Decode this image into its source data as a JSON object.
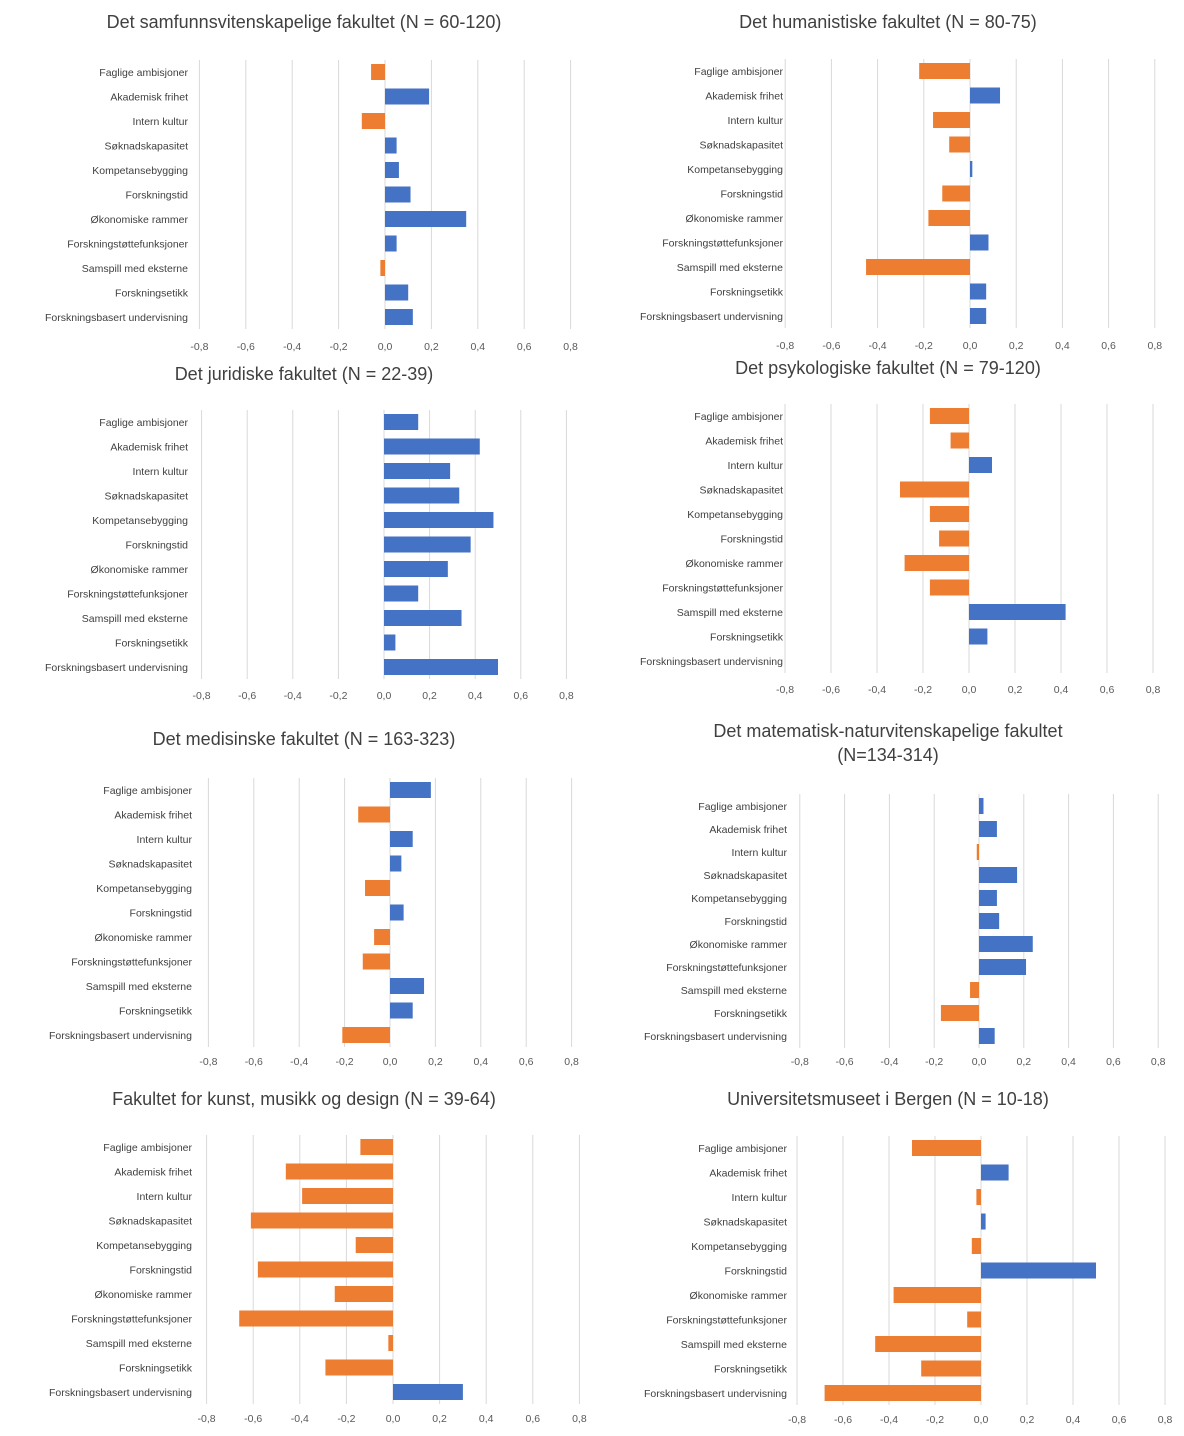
{
  "colors": {
    "positive": "#4472c4",
    "negative": "#ed7d31",
    "grid": "#d9d9d9",
    "text": "#404040"
  },
  "xlim": [
    -0.8,
    0.8
  ],
  "tick_labels": [
    "-0,8",
    "-0,6",
    "-0,4",
    "-0,2",
    "0,0",
    "0,2",
    "0,4",
    "0,6",
    "0,8"
  ],
  "categories": [
    "Faglige ambisjoner",
    "Akademisk frihet",
    "Intern kultur",
    "Søknadskapasitet",
    "Kompetansebygging",
    "Forskningstid",
    "Økonomiske rammer",
    "Forskningstøttefunksjoner",
    "Samspill med eksterne",
    "Forskningsetikk",
    "Forskningsbasert undervisning"
  ],
  "chart_data": [
    {
      "type": "bar",
      "orientation": "horizontal",
      "title": [
        "Det samfunnsvitenskapelige fakultet (N = 60-120)"
      ],
      "categories": [
        "Faglige ambisjoner",
        "Akademisk frihet",
        "Intern kultur",
        "Søknadskapasitet",
        "Kompetansebygging",
        "Forskningstid",
        "Økonomiske rammer",
        "Forskningstøttefunksjoner",
        "Samspill med eksterne",
        "Forskningsetikk",
        "Forskningsbasert undervisning"
      ],
      "values": [
        -0.06,
        0.19,
        -0.1,
        0.05,
        0.06,
        0.11,
        0.35,
        0.05,
        -0.02,
        0.1,
        0.12
      ],
      "xlim": [
        -0.8,
        0.8
      ]
    },
    {
      "type": "bar",
      "orientation": "horizontal",
      "title": [
        "Det humanistiske fakultet (N = 80-75)"
      ],
      "categories": [
        "Faglige ambisjoner",
        "Akademisk frihet",
        "Intern kultur",
        "Søknadskapasitet",
        "Kompetansebygging",
        "Forskningstid",
        "Økonomiske rammer",
        "Forskningstøttefunksjoner",
        "Samspill med eksterne",
        "Forskningsetikk",
        "Forskningsbasert undervisning"
      ],
      "values": [
        -0.22,
        0.13,
        -0.16,
        -0.09,
        0.01,
        -0.12,
        -0.18,
        0.08,
        -0.45,
        0.07,
        0.07
      ],
      "xlim": [
        -0.8,
        0.8
      ]
    },
    {
      "type": "bar",
      "orientation": "horizontal",
      "title": [
        "Det juridiske fakultet (N = 22-39)"
      ],
      "categories": [
        "Faglige ambisjoner",
        "Akademisk frihet",
        "Intern kultur",
        "Søknadskapasitet",
        "Kompetansebygging",
        "Forskningstid",
        "Økonomiske rammer",
        "Forskningstøttefunksjoner",
        "Samspill med eksterne",
        "Forskningsetikk",
        "Forskningsbasert undervisning"
      ],
      "values": [
        0.15,
        0.42,
        0.29,
        0.33,
        0.48,
        0.38,
        0.28,
        0.15,
        0.34,
        0.05,
        0.5
      ],
      "xlim": [
        -0.8,
        0.8
      ]
    },
    {
      "type": "bar",
      "orientation": "horizontal",
      "title": [
        "Det psykologiske fakultet (N = 79-120)"
      ],
      "categories": [
        "Faglige ambisjoner",
        "Akademisk frihet",
        "Intern kultur",
        "Søknadskapasitet",
        "Kompetansebygging",
        "Forskningstid",
        "Økonomiske rammer",
        "Forskningstøttefunksjoner",
        "Samspill med eksterne",
        "Forskningsetikk",
        "Forskningsbasert undervisning"
      ],
      "values": [
        -0.17,
        -0.08,
        0.1,
        -0.3,
        -0.17,
        -0.13,
        -0.28,
        -0.17,
        0.42,
        0.08,
        0.0
      ],
      "xlim": [
        -0.8,
        0.8
      ]
    },
    {
      "type": "bar",
      "orientation": "horizontal",
      "title": [
        "Det medisinske fakultet (N = 163-323)"
      ],
      "categories": [
        "Faglige ambisjoner",
        "Akademisk frihet",
        "Intern kultur",
        "Søknadskapasitet",
        "Kompetansebygging",
        "Forskningstid",
        "Økonomiske rammer",
        "Forskningstøttefunksjoner",
        "Samspill med eksterne",
        "Forskningsetikk",
        "Forskningsbasert undervisning"
      ],
      "values": [
        0.18,
        -0.14,
        0.1,
        0.05,
        -0.11,
        0.06,
        -0.07,
        -0.12,
        0.15,
        0.1,
        -0.21
      ],
      "xlim": [
        -0.8,
        0.8
      ]
    },
    {
      "type": "bar",
      "orientation": "horizontal",
      "title": [
        "Det matematisk-naturvitenskapelige fakultet",
        "(N=134-314)"
      ],
      "categories": [
        "Faglige ambisjoner",
        "Akademisk frihet",
        "Intern kultur",
        "Søknadskapasitet",
        "Kompetansebygging",
        "Forskningstid",
        "Økonomiske rammer",
        "Forskningstøttefunksjoner",
        "Samspill med eksterne",
        "Forskningsetikk",
        "Forskningsbasert undervisning"
      ],
      "values": [
        0.02,
        0.08,
        -0.01,
        0.17,
        0.08,
        0.09,
        0.24,
        0.21,
        -0.04,
        -0.17,
        0.07
      ],
      "xlim": [
        -0.8,
        0.8
      ]
    },
    {
      "type": "bar",
      "orientation": "horizontal",
      "title": [
        "Fakultet for kunst, musikk og design (N = 39-64)"
      ],
      "categories": [
        "Faglige ambisjoner",
        "Akademisk frihet",
        "Intern kultur",
        "Søknadskapasitet",
        "Kompetansebygging",
        "Forskningstid",
        "Økonomiske rammer",
        "Forskningstøttefunksjoner",
        "Samspill med eksterne",
        "Forskningsetikk",
        "Forskningsbasert undervisning"
      ],
      "values": [
        -0.14,
        -0.46,
        -0.39,
        -0.61,
        -0.16,
        -0.58,
        -0.25,
        -0.66,
        -0.02,
        -0.29,
        0.3
      ],
      "xlim": [
        -0.8,
        0.8
      ]
    },
    {
      "type": "bar",
      "orientation": "horizontal",
      "title": [
        "Universitetsmuseet i Bergen (N = 10-18)"
      ],
      "categories": [
        "Faglige ambisjoner",
        "Akademisk frihet",
        "Intern kultur",
        "Søknadskapasitet",
        "Kompetansebygging",
        "Forskningstid",
        "Økonomiske rammer",
        "Forskningstøttefunksjoner",
        "Samspill med eksterne",
        "Forskningsetikk",
        "Forskningsbasert undervisning"
      ],
      "values": [
        -0.3,
        0.12,
        -0.02,
        0.02,
        -0.04,
        0.5,
        -0.38,
        -0.06,
        -0.46,
        -0.26,
        -0.68
      ],
      "xlim": [
        -0.8,
        0.8
      ]
    }
  ]
}
